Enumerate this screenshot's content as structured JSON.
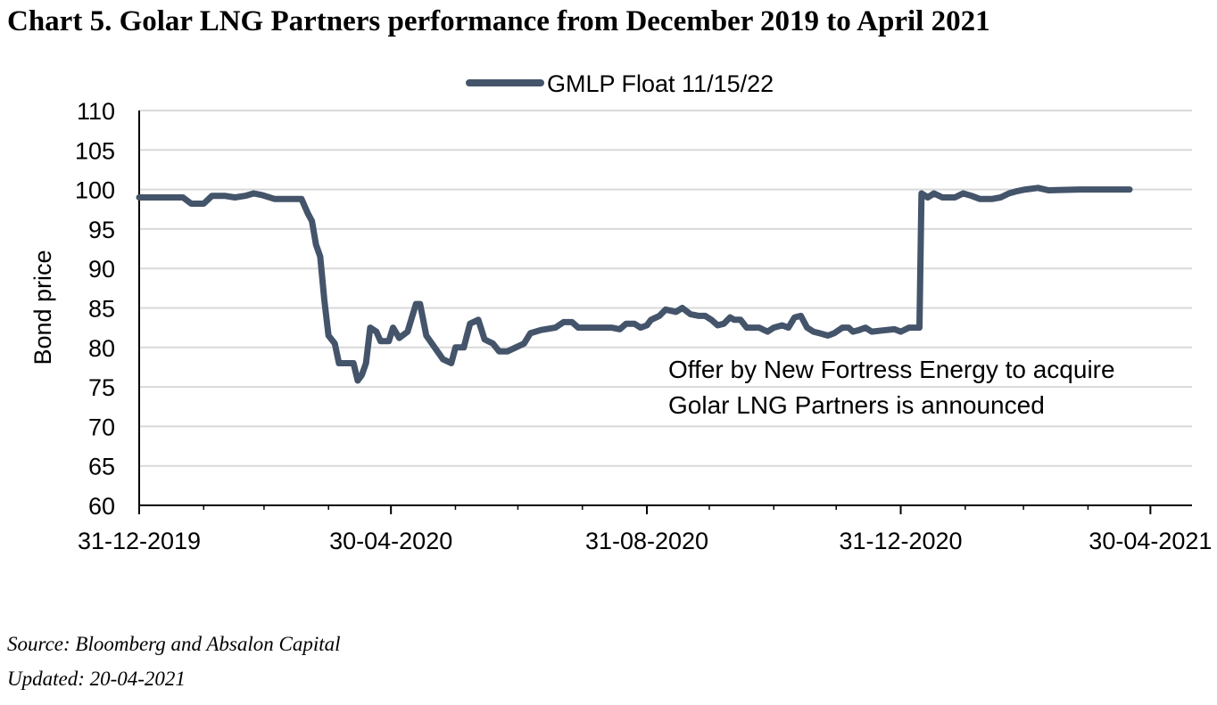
{
  "title": "Chart 5. Golar LNG Partners performance from December 2019 to April 2021",
  "source": "Source: Bloomberg and Absalon Capital",
  "updated": "Updated: 20-04-2021",
  "chart_data": {
    "type": "line",
    "ylabel": "Bond price",
    "ylim": [
      60,
      110
    ],
    "yticks": [
      60,
      65,
      70,
      75,
      80,
      85,
      90,
      95,
      100,
      105,
      110
    ],
    "xlim": [
      "2019-12-31",
      "2021-05-20"
    ],
    "xtick_dates": [
      "2019-12-31",
      "2020-04-30",
      "2020-08-31",
      "2020-12-31",
      "2021-04-30"
    ],
    "xtick_labels": [
      "31-12-2019",
      "30-04-2020",
      "31-08-2020",
      "31-12-2020",
      "30-04-2021"
    ],
    "grid": "horizontal",
    "legend_position": "top-center",
    "line_color": "#44546a",
    "annotation": [
      "Offer by New Fortress Energy to acquire",
      "Golar LNG Partners is announced"
    ],
    "series": [
      {
        "name": "GMLP Float 11/15/22",
        "points": [
          [
            "2019-12-31",
            99.0
          ],
          [
            "2020-01-21",
            99.0
          ],
          [
            "2020-01-25",
            98.2
          ],
          [
            "2020-01-31",
            98.2
          ],
          [
            "2020-02-04",
            99.2
          ],
          [
            "2020-02-10",
            99.2
          ],
          [
            "2020-02-15",
            99.0
          ],
          [
            "2020-02-20",
            99.2
          ],
          [
            "2020-02-24",
            99.5
          ],
          [
            "2020-02-28",
            99.3
          ],
          [
            "2020-03-05",
            98.8
          ],
          [
            "2020-03-18",
            98.8
          ],
          [
            "2020-03-21",
            97.0
          ],
          [
            "2020-03-23",
            96.0
          ],
          [
            "2020-03-25",
            93.0
          ],
          [
            "2020-03-27",
            91.5
          ],
          [
            "2020-03-29",
            86.0
          ],
          [
            "2020-03-31",
            81.5
          ],
          [
            "2020-04-03",
            80.5
          ],
          [
            "2020-04-05",
            78.0
          ],
          [
            "2020-04-12",
            78.0
          ],
          [
            "2020-04-14",
            75.8
          ],
          [
            "2020-04-16",
            76.5
          ],
          [
            "2020-04-18",
            78.0
          ],
          [
            "2020-04-20",
            82.5
          ],
          [
            "2020-04-23",
            82.0
          ],
          [
            "2020-04-25",
            80.8
          ],
          [
            "2020-04-29",
            80.8
          ],
          [
            "2020-05-01",
            82.5
          ],
          [
            "2020-05-04",
            81.2
          ],
          [
            "2020-05-08",
            82.0
          ],
          [
            "2020-05-12",
            85.5
          ],
          [
            "2020-05-14",
            85.5
          ],
          [
            "2020-05-17",
            81.5
          ],
          [
            "2020-05-21",
            80.0
          ],
          [
            "2020-05-25",
            78.5
          ],
          [
            "2020-05-29",
            78.0
          ],
          [
            "2020-05-31",
            80.0
          ],
          [
            "2020-06-04",
            80.0
          ],
          [
            "2020-06-07",
            83.0
          ],
          [
            "2020-06-11",
            83.5
          ],
          [
            "2020-06-14",
            81.0
          ],
          [
            "2020-06-18",
            80.5
          ],
          [
            "2020-06-21",
            79.5
          ],
          [
            "2020-06-25",
            79.5
          ],
          [
            "2020-06-29",
            80.0
          ],
          [
            "2020-07-03",
            80.5
          ],
          [
            "2020-07-06",
            81.8
          ],
          [
            "2020-07-11",
            82.2
          ],
          [
            "2020-07-18",
            82.5
          ],
          [
            "2020-07-22",
            83.2
          ],
          [
            "2020-07-26",
            83.2
          ],
          [
            "2020-07-29",
            82.5
          ],
          [
            "2020-08-14",
            82.5
          ],
          [
            "2020-08-18",
            82.3
          ],
          [
            "2020-08-21",
            83.0
          ],
          [
            "2020-08-25",
            83.0
          ],
          [
            "2020-08-28",
            82.5
          ],
          [
            "2020-08-31",
            82.8
          ],
          [
            "2020-09-02",
            83.5
          ],
          [
            "2020-09-06",
            84.0
          ],
          [
            "2020-09-09",
            84.8
          ],
          [
            "2020-09-14",
            84.5
          ],
          [
            "2020-09-17",
            85.0
          ],
          [
            "2020-09-21",
            84.2
          ],
          [
            "2020-09-25",
            84.0
          ],
          [
            "2020-09-28",
            84.0
          ],
          [
            "2020-10-01",
            83.5
          ],
          [
            "2020-10-04",
            82.8
          ],
          [
            "2020-10-07",
            83.0
          ],
          [
            "2020-10-10",
            83.8
          ],
          [
            "2020-10-12",
            83.5
          ],
          [
            "2020-10-15",
            83.5
          ],
          [
            "2020-10-18",
            82.5
          ],
          [
            "2020-10-24",
            82.5
          ],
          [
            "2020-10-28",
            82.0
          ],
          [
            "2020-10-31",
            82.5
          ],
          [
            "2020-11-04",
            82.8
          ],
          [
            "2020-11-07",
            82.5
          ],
          [
            "2020-11-10",
            83.8
          ],
          [
            "2020-11-13",
            84.0
          ],
          [
            "2020-11-16",
            82.5
          ],
          [
            "2020-11-19",
            82.0
          ],
          [
            "2020-11-22",
            81.8
          ],
          [
            "2020-11-26",
            81.5
          ],
          [
            "2020-11-29",
            81.8
          ],
          [
            "2020-12-03",
            82.5
          ],
          [
            "2020-12-06",
            82.5
          ],
          [
            "2020-12-08",
            82.0
          ],
          [
            "2020-12-11",
            82.2
          ],
          [
            "2020-12-14",
            82.5
          ],
          [
            "2020-12-17",
            82.0
          ],
          [
            "2020-12-24",
            82.2
          ],
          [
            "2020-12-28",
            82.3
          ],
          [
            "2020-12-31",
            82.0
          ],
          [
            "2021-01-04",
            82.5
          ],
          [
            "2021-01-09",
            82.5
          ],
          [
            "2021-01-10",
            99.5
          ],
          [
            "2021-01-13",
            99.0
          ],
          [
            "2021-01-16",
            99.5
          ],
          [
            "2021-01-20",
            99.0
          ],
          [
            "2021-01-26",
            99.0
          ],
          [
            "2021-01-30",
            99.5
          ],
          [
            "2021-02-03",
            99.2
          ],
          [
            "2021-02-07",
            98.8
          ],
          [
            "2021-02-13",
            98.8
          ],
          [
            "2021-02-17",
            99.0
          ],
          [
            "2021-02-21",
            99.5
          ],
          [
            "2021-02-25",
            99.8
          ],
          [
            "2021-03-01",
            100.0
          ],
          [
            "2021-03-07",
            100.2
          ],
          [
            "2021-03-12",
            99.9
          ],
          [
            "2021-03-27",
            100.0
          ],
          [
            "2021-04-06",
            100.0
          ],
          [
            "2021-04-20",
            100.0
          ]
        ]
      }
    ]
  }
}
